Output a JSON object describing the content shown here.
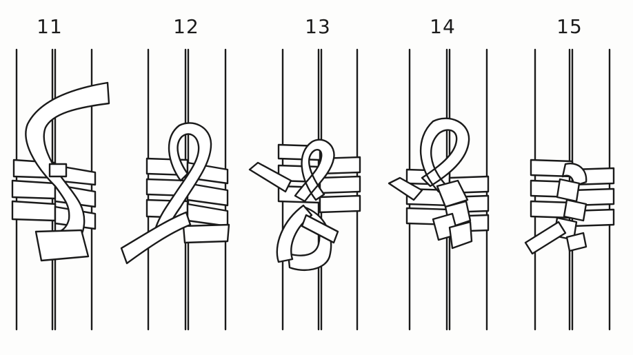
{
  "steps": [
    {
      "number": "11"
    },
    {
      "number": "12"
    },
    {
      "number": "13"
    },
    {
      "number": "14"
    },
    {
      "number": "15"
    }
  ],
  "colors": {
    "ink": "#1a1a1a",
    "paper": "#ffffff"
  }
}
